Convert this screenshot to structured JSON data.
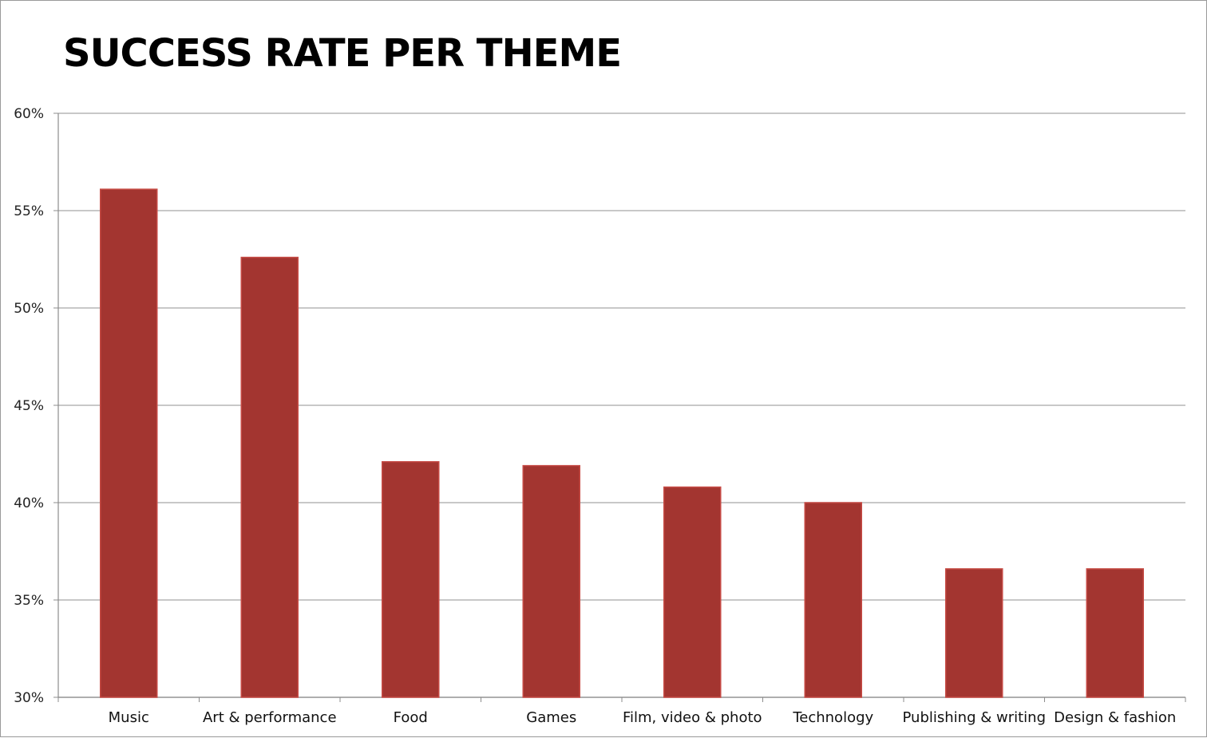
{
  "chart_data": {
    "type": "bar",
    "title": "SUCCESS RATE PER THEME",
    "categories": [
      "Music",
      "Art & performance",
      "Food",
      "Games",
      "Film, video & photo",
      "Technology",
      "Publishing & writing",
      "Design & fashion"
    ],
    "series": [
      {
        "values": [
          56.1,
          52.6,
          42.1,
          41.9,
          40.8,
          40.0,
          36.6,
          36.6
        ]
      }
    ],
    "ylim": [
      30,
      60
    ],
    "yticks": [
      30,
      35,
      40,
      45,
      50,
      55,
      60
    ],
    "ytick_labels": [
      "30%",
      "35%",
      "40%",
      "45%",
      "50%",
      "55%",
      "60%"
    ],
    "xlabel": "",
    "ylabel": "",
    "grid": true,
    "legend": "none",
    "colors": {
      "bar": "#a33530",
      "bar_edge": "#c64a44",
      "grid": "#a6a6a6",
      "axis": "#8c8c8c"
    }
  }
}
